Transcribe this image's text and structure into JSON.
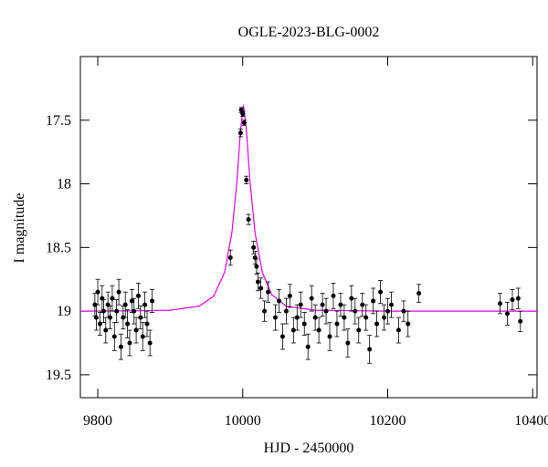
{
  "chart_data": {
    "type": "scatter",
    "title": "OGLE-2023-BLG-0002",
    "x_label": "HJD - 2450000",
    "y_label": "I magnitude",
    "xlim": [
      9776,
      10406
    ],
    "ylim": [
      19.68,
      17.0
    ],
    "y_inverted": true,
    "xticks": [
      9800,
      10000,
      10200,
      10400
    ],
    "yticks": [
      17.5,
      18,
      18.5,
      19,
      19.5
    ],
    "color": "#000000",
    "x": [
      9796,
      9798,
      9800,
      9803,
      9806,
      9808,
      9811,
      9814,
      9817,
      9820,
      9823,
      9826,
      9829,
      9832,
      9835,
      9838,
      9841,
      9844,
      9847,
      9850,
      9853,
      9856,
      9859,
      9862,
      9865,
      9868,
      9872,
      9875,
      9983,
      9997,
      9998,
      10000,
      10002,
      10005,
      10008,
      10015,
      10017,
      10019,
      10021,
      10025,
      10030,
      10035,
      10045,
      10050,
      10055,
      10060,
      10065,
      10070,
      10075,
      10080,
      10085,
      10090,
      10095,
      10100,
      10105,
      10110,
      10115,
      10120,
      10125,
      10130,
      10135,
      10140,
      10145,
      10150,
      10155,
      10160,
      10165,
      10170,
      10175,
      10180,
      10185,
      10190,
      10195,
      10200,
      10205,
      10215,
      10222,
      10228,
      10243,
      10355,
      10365,
      10372,
      10380,
      10383
    ],
    "y": [
      18.95,
      19.05,
      18.85,
      19.1,
      18.9,
      19.0,
      19.15,
      18.95,
      19.05,
      18.9,
      19.2,
      19.0,
      18.85,
      19.28,
      19.05,
      18.95,
      19.1,
      19.25,
      18.92,
      19.0,
      19.15,
      18.88,
      19.05,
      19.2,
      18.95,
      19.1,
      19.25,
      18.92,
      18.58,
      17.6,
      17.42,
      17.45,
      17.52,
      17.97,
      18.28,
      18.5,
      18.58,
      18.65,
      18.77,
      18.82,
      19.0,
      18.85,
      19.05,
      18.92,
      19.2,
      19.0,
      18.88,
      19.15,
      19.05,
      18.95,
      19.1,
      19.28,
      18.9,
      19.05,
      19.15,
      18.95,
      19.0,
      19.2,
      18.88,
      19.1,
      18.95,
      19.05,
      19.25,
      18.9,
      19.0,
      19.15,
      18.95,
      19.05,
      19.3,
      18.92,
      19.1,
      18.85,
      19.05,
      19.0,
      18.95,
      19.15,
      19.0,
      19.1,
      18.86,
      18.94,
      19.02,
      18.91,
      18.9,
      19.08
    ],
    "errors": [
      0.09,
      0.1,
      0.1,
      0.09,
      0.1,
      0.09,
      0.1,
      0.1,
      0.09,
      0.1,
      0.11,
      0.09,
      0.1,
      0.1,
      0.09,
      0.1,
      0.11,
      0.1,
      0.09,
      0.1,
      0.1,
      0.1,
      0.09,
      0.11,
      0.1,
      0.1,
      0.1,
      0.09,
      0.06,
      0.03,
      0.02,
      0.02,
      0.02,
      0.03,
      0.04,
      0.05,
      0.05,
      0.06,
      0.07,
      0.08,
      0.08,
      0.08,
      0.1,
      0.09,
      0.1,
      0.1,
      0.09,
      0.1,
      0.1,
      0.1,
      0.09,
      0.1,
      0.1,
      0.1,
      0.1,
      0.09,
      0.1,
      0.11,
      0.1,
      0.1,
      0.09,
      0.1,
      0.11,
      0.1,
      0.1,
      0.1,
      0.09,
      0.1,
      0.11,
      0.1,
      0.1,
      0.09,
      0.1,
      0.1,
      0.1,
      0.1,
      0.08,
      0.1,
      0.07,
      0.08,
      0.09,
      0.08,
      0.08,
      0.08
    ],
    "model": {
      "color": "#e600e6",
      "x": [
        9776,
        9850,
        9900,
        9940,
        9960,
        9975,
        9985,
        9992,
        9997,
        10001,
        10005,
        10010,
        10017,
        10027,
        10040,
        10060,
        10100,
        10200,
        10406
      ],
      "y": [
        19.0,
        18.998,
        18.993,
        18.961,
        18.882,
        18.695,
        18.387,
        17.98,
        17.575,
        17.383,
        17.575,
        17.98,
        18.387,
        18.695,
        18.87,
        18.961,
        18.993,
        19.0,
        19.0
      ]
    }
  }
}
